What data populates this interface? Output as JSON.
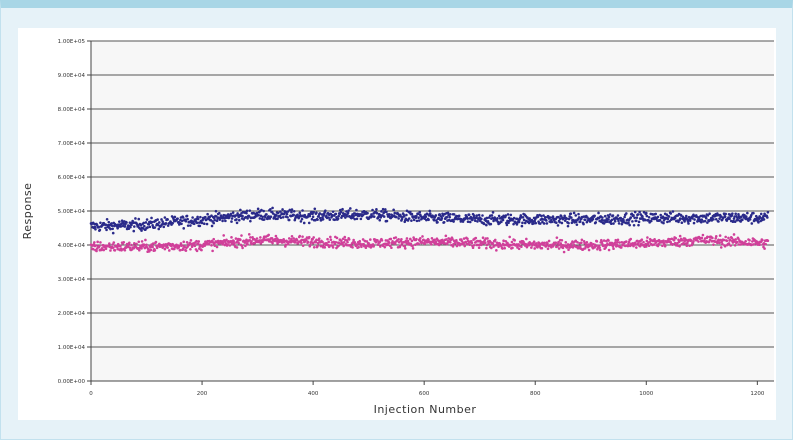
{
  "colors": {
    "background": "#e6f2f8",
    "frame_accent": "#a8d6e6",
    "plot_area": "#f7f7f7",
    "gridline": "#555555",
    "series_upper": "#2a2a8a",
    "series_lower": "#d0409a"
  },
  "chart_data": {
    "type": "scatter",
    "title": "",
    "xlabel": "Injection Number",
    "ylabel": "Response",
    "xlim": [
      0,
      1230
    ],
    "ylim": [
      0,
      100000
    ],
    "x_ticks": [
      0,
      200,
      400,
      600,
      800,
      1000,
      1200
    ],
    "y_ticks": [
      0,
      10000,
      20000,
      30000,
      40000,
      50000,
      60000,
      70000,
      80000,
      90000,
      100000
    ],
    "y_tick_labels": [
      "0.00E+00",
      "1.00E+04",
      "2.00E+04",
      "3.00E+04",
      "4.00E+04",
      "5.00E+04",
      "6.00E+04",
      "7.00E+04",
      "8.00E+04",
      "9.00E+04",
      "1.00E+05"
    ],
    "grid": "horizontal",
    "legend": "none",
    "n_points": 1220,
    "series": [
      {
        "color": "#2a2a8a",
        "mean_profile": [
          [
            0,
            45500
          ],
          [
            100,
            46000
          ],
          [
            200,
            47500
          ],
          [
            300,
            49000
          ],
          [
            400,
            48500
          ],
          [
            500,
            49000
          ],
          [
            600,
            48000
          ],
          [
            700,
            47500
          ],
          [
            800,
            47500
          ],
          [
            900,
            47500
          ],
          [
            1000,
            48000
          ],
          [
            1100,
            48000
          ],
          [
            1220,
            48000
          ]
        ],
        "spread": 1200
      },
      {
        "color": "#d0409a",
        "mean_profile": [
          [
            0,
            39500
          ],
          [
            100,
            39500
          ],
          [
            200,
            40000
          ],
          [
            300,
            41500
          ],
          [
            400,
            41000
          ],
          [
            500,
            40500
          ],
          [
            600,
            41000
          ],
          [
            700,
            40500
          ],
          [
            800,
            40000
          ],
          [
            900,
            40000
          ],
          [
            1000,
            40500
          ],
          [
            1100,
            41500
          ],
          [
            1220,
            40500
          ]
        ],
        "spread": 1100
      }
    ]
  }
}
